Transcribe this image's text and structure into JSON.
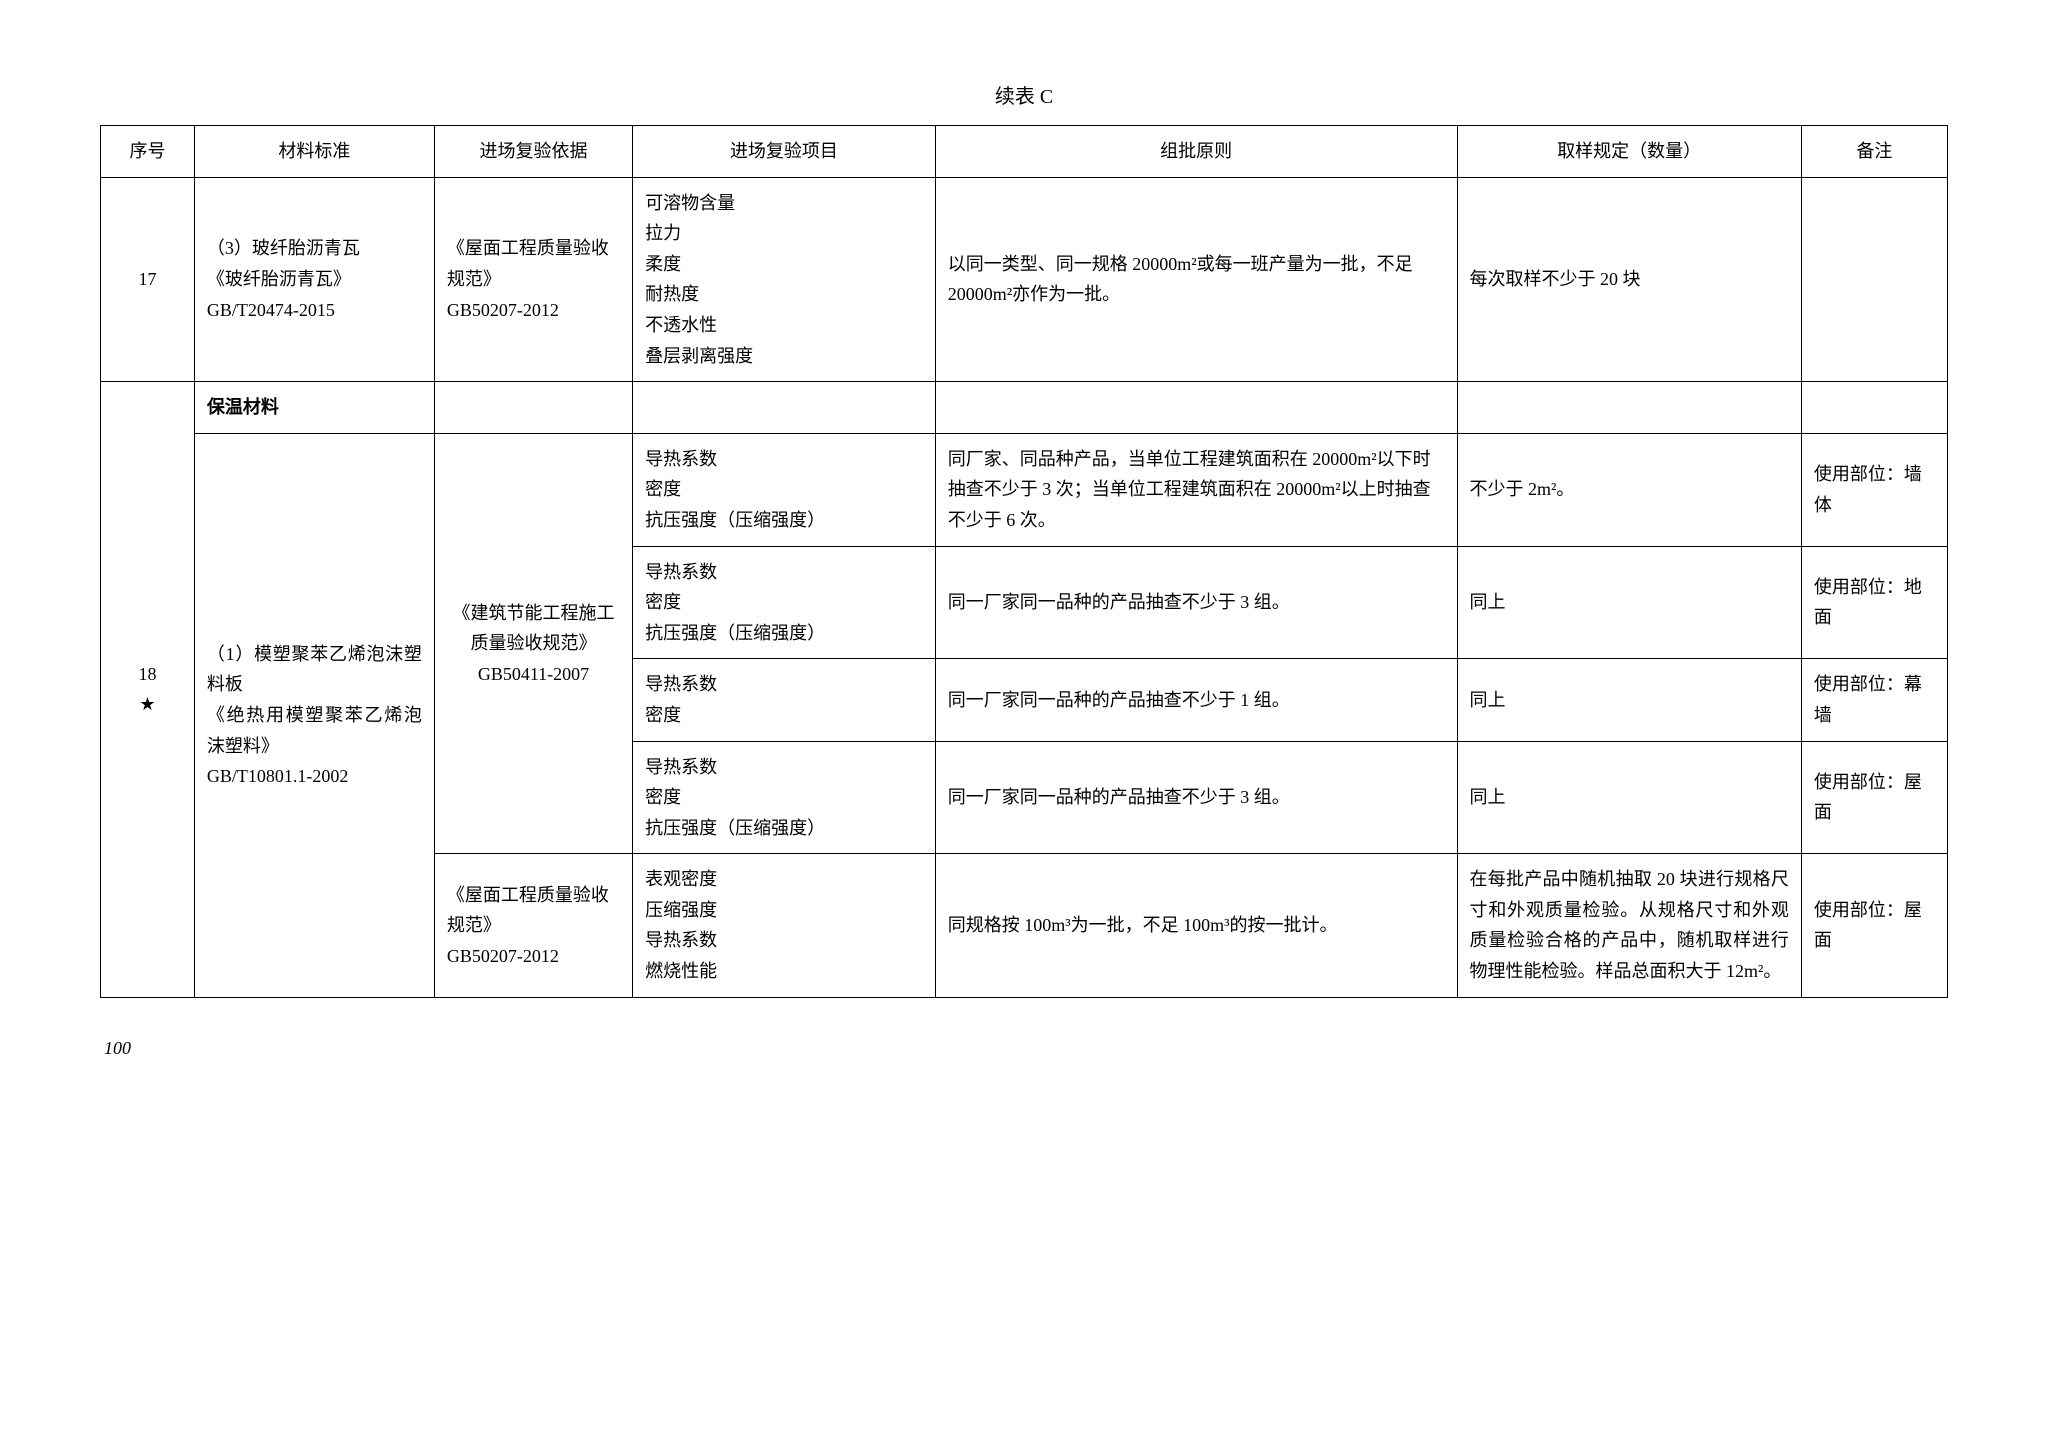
{
  "caption": "续表 C",
  "pageNumber": "100",
  "columns": {
    "seq": "序号",
    "std": "材料标准",
    "basis": "进场复验依据",
    "items": "进场复验项目",
    "batch": "组批原则",
    "sample": "取样规定（数量）",
    "remark": "备注"
  },
  "row17": {
    "seq": "17",
    "std": "（3）玻纤胎沥青瓦\n《玻纤胎沥青瓦》\nGB/T20474-2015",
    "basis": "《屋面工程质量验收规范》\nGB50207-2012",
    "items": "可溶物含量\n拉力\n柔度\n耐热度\n不透水性\n叠层剥离强度",
    "batch": "以同一类型、同一规格 20000m²或每一班产量为一批，不足 20000m²亦作为一批。",
    "sample": "每次取样不少于 20 块",
    "remark": ""
  },
  "section": {
    "title": "保温材料"
  },
  "row18": {
    "seq": "18\n★",
    "std": "（1）模塑聚苯乙烯泡沫塑料板\n《绝热用模塑聚苯乙烯泡沫塑料》\nGB/T10801.1-2002",
    "basis1": "《建筑节能工程施工质量验收规范》\nGB50411-2007",
    "sub1": {
      "items": "导热系数\n密度\n抗压强度（压缩强度）",
      "batch": "同厂家、同品种产品，当单位工程建筑面积在 20000m²以下时抽查不少于 3 次；当单位工程建筑面积在 20000m²以上时抽查不少于 6 次。",
      "sample": "不少于 2m²。",
      "remark": "使用部位：墙体"
    },
    "sub2": {
      "items": "导热系数\n密度\n抗压强度（压缩强度）",
      "batch": "同一厂家同一品种的产品抽查不少于 3 组。",
      "sample": "同上",
      "remark": "使用部位：地面"
    },
    "sub3": {
      "items": "导热系数\n密度",
      "batch": "同一厂家同一品种的产品抽查不少于 1 组。",
      "sample": "同上",
      "remark": "使用部位：幕墙"
    },
    "sub4": {
      "items": "导热系数\n密度\n抗压强度（压缩强度）",
      "batch": "同一厂家同一品种的产品抽查不少于 3 组。",
      "sample": "同上",
      "remark": "使用部位：屋面"
    },
    "basis2": "《屋面工程质量验收规范》\nGB50207-2012",
    "sub5": {
      "items": "表观密度\n压缩强度\n导热系数\n燃烧性能",
      "batch": "同规格按 100m³为一批，不足 100m³的按一批计。",
      "sample": "在每批产品中随机抽取 20 块进行规格尺寸和外观质量检验。从规格尺寸和外观质量检验合格的产品中，随机取样进行物理性能检验。样品总面积大于 12m²。",
      "remark": "使用部位：屋面"
    }
  }
}
